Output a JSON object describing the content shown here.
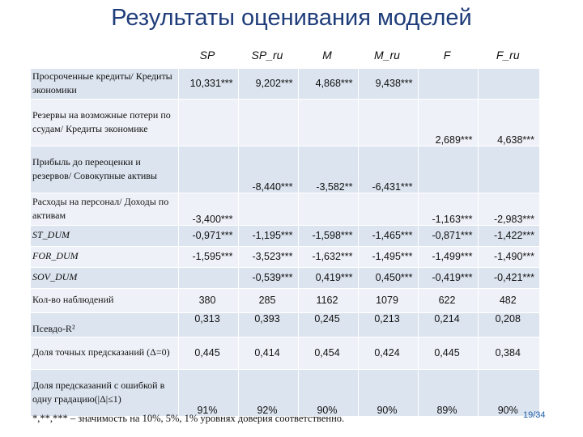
{
  "title": "Результаты оценивания моделей",
  "columns": [
    "SP",
    "SP_ru",
    "M",
    "M_ru",
    "F",
    "F_ru"
  ],
  "rows": [
    {
      "label": "Просроченные кредиты/ Кредиты экономики",
      "values": [
        "10,331***",
        "9,202***",
        "4,868***",
        "9,438***",
        "",
        ""
      ]
    },
    {
      "label": "Резервы на возможные потери по ссудам/ Кредиты экономике",
      "values": [
        "",
        "",
        "",
        "",
        "2,689***",
        "4,638***"
      ]
    },
    {
      "label": "Прибыль до переоценки и резервов/ Совокупные активы",
      "values": [
        "",
        "-8,440***",
        "-3,582**",
        "-6,431***",
        "",
        ""
      ]
    },
    {
      "label": "Расходы на персонал/ Доходы по активам",
      "values": [
        "-3,400***",
        "",
        "",
        "",
        "-1,163***",
        "-2,983***"
      ]
    },
    {
      "label": "ST_DUM",
      "values": [
        "-0,971***",
        "-1,195***",
        "-1,598***",
        "-1,465***",
        "-0,871***",
        "-1,422***"
      ]
    },
    {
      "label": "FOR_DUM",
      "values": [
        "-1,595***",
        "-3,523***",
        "-1,632***",
        "-1,495***",
        "-1,499***",
        "-1,490***"
      ]
    },
    {
      "label": "SOV_DUM",
      "values": [
        "",
        "-0,539***",
        "0,419***",
        "0,450***",
        "-0,419***",
        "-0,421***"
      ]
    },
    {
      "label": "Кол-во наблюдений",
      "values": [
        "380",
        "285",
        "1162",
        "1079",
        "622",
        "482"
      ]
    },
    {
      "label": "Псевдо-R²",
      "values": [
        "0,313",
        "0,393",
        "0,245",
        "0,213",
        "0,214",
        "0,208"
      ]
    },
    {
      "label": "Доля точных предсказаний (Δ=0)",
      "values": [
        "0,445",
        "0,414",
        "0,454",
        "0,424",
        "0,445",
        "0,384"
      ]
    },
    {
      "label": "Доля предсказаний с ошибкой в одну градацию(|Δ|≤1)",
      "values": [
        "91%",
        "92%",
        "90%",
        "90%",
        "89%",
        "90%"
      ]
    }
  ],
  "footnote": "*,**,*** – значимость на 10%, 5%, 1% уровнях доверия соответственно.",
  "page_number": "19/34"
}
